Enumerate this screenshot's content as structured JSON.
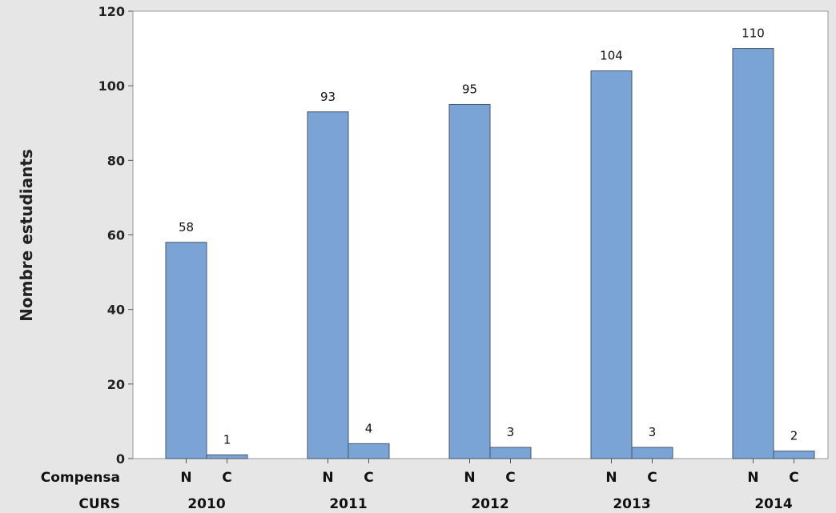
{
  "chart_data": {
    "type": "bar",
    "ylabel": "Nombre estudiants",
    "ylim": [
      0,
      120
    ],
    "yticks": [
      "0",
      "20",
      "40",
      "60",
      "80",
      "100",
      "120"
    ],
    "row_labels": {
      "inner": "Compensa",
      "outer": "CURS"
    },
    "groups": [
      "2010",
      "2011",
      "2012",
      "2013",
      "2014"
    ],
    "inner_categories": [
      "N",
      "C"
    ],
    "values": [
      [
        58,
        1
      ],
      [
        93,
        4
      ],
      [
        95,
        3
      ],
      [
        104,
        3
      ],
      [
        110,
        2
      ]
    ],
    "data_labels": [
      [
        "58",
        "1"
      ],
      [
        "93",
        "4"
      ],
      [
        "95",
        "3"
      ],
      [
        "104",
        "3"
      ],
      [
        "110",
        "2"
      ]
    ],
    "grid": false,
    "bar_color": "#7ba4d6",
    "bar_edge_color": "#44546a",
    "background_color": "#e6e6e6",
    "plot_background_color": "#ffffff"
  }
}
